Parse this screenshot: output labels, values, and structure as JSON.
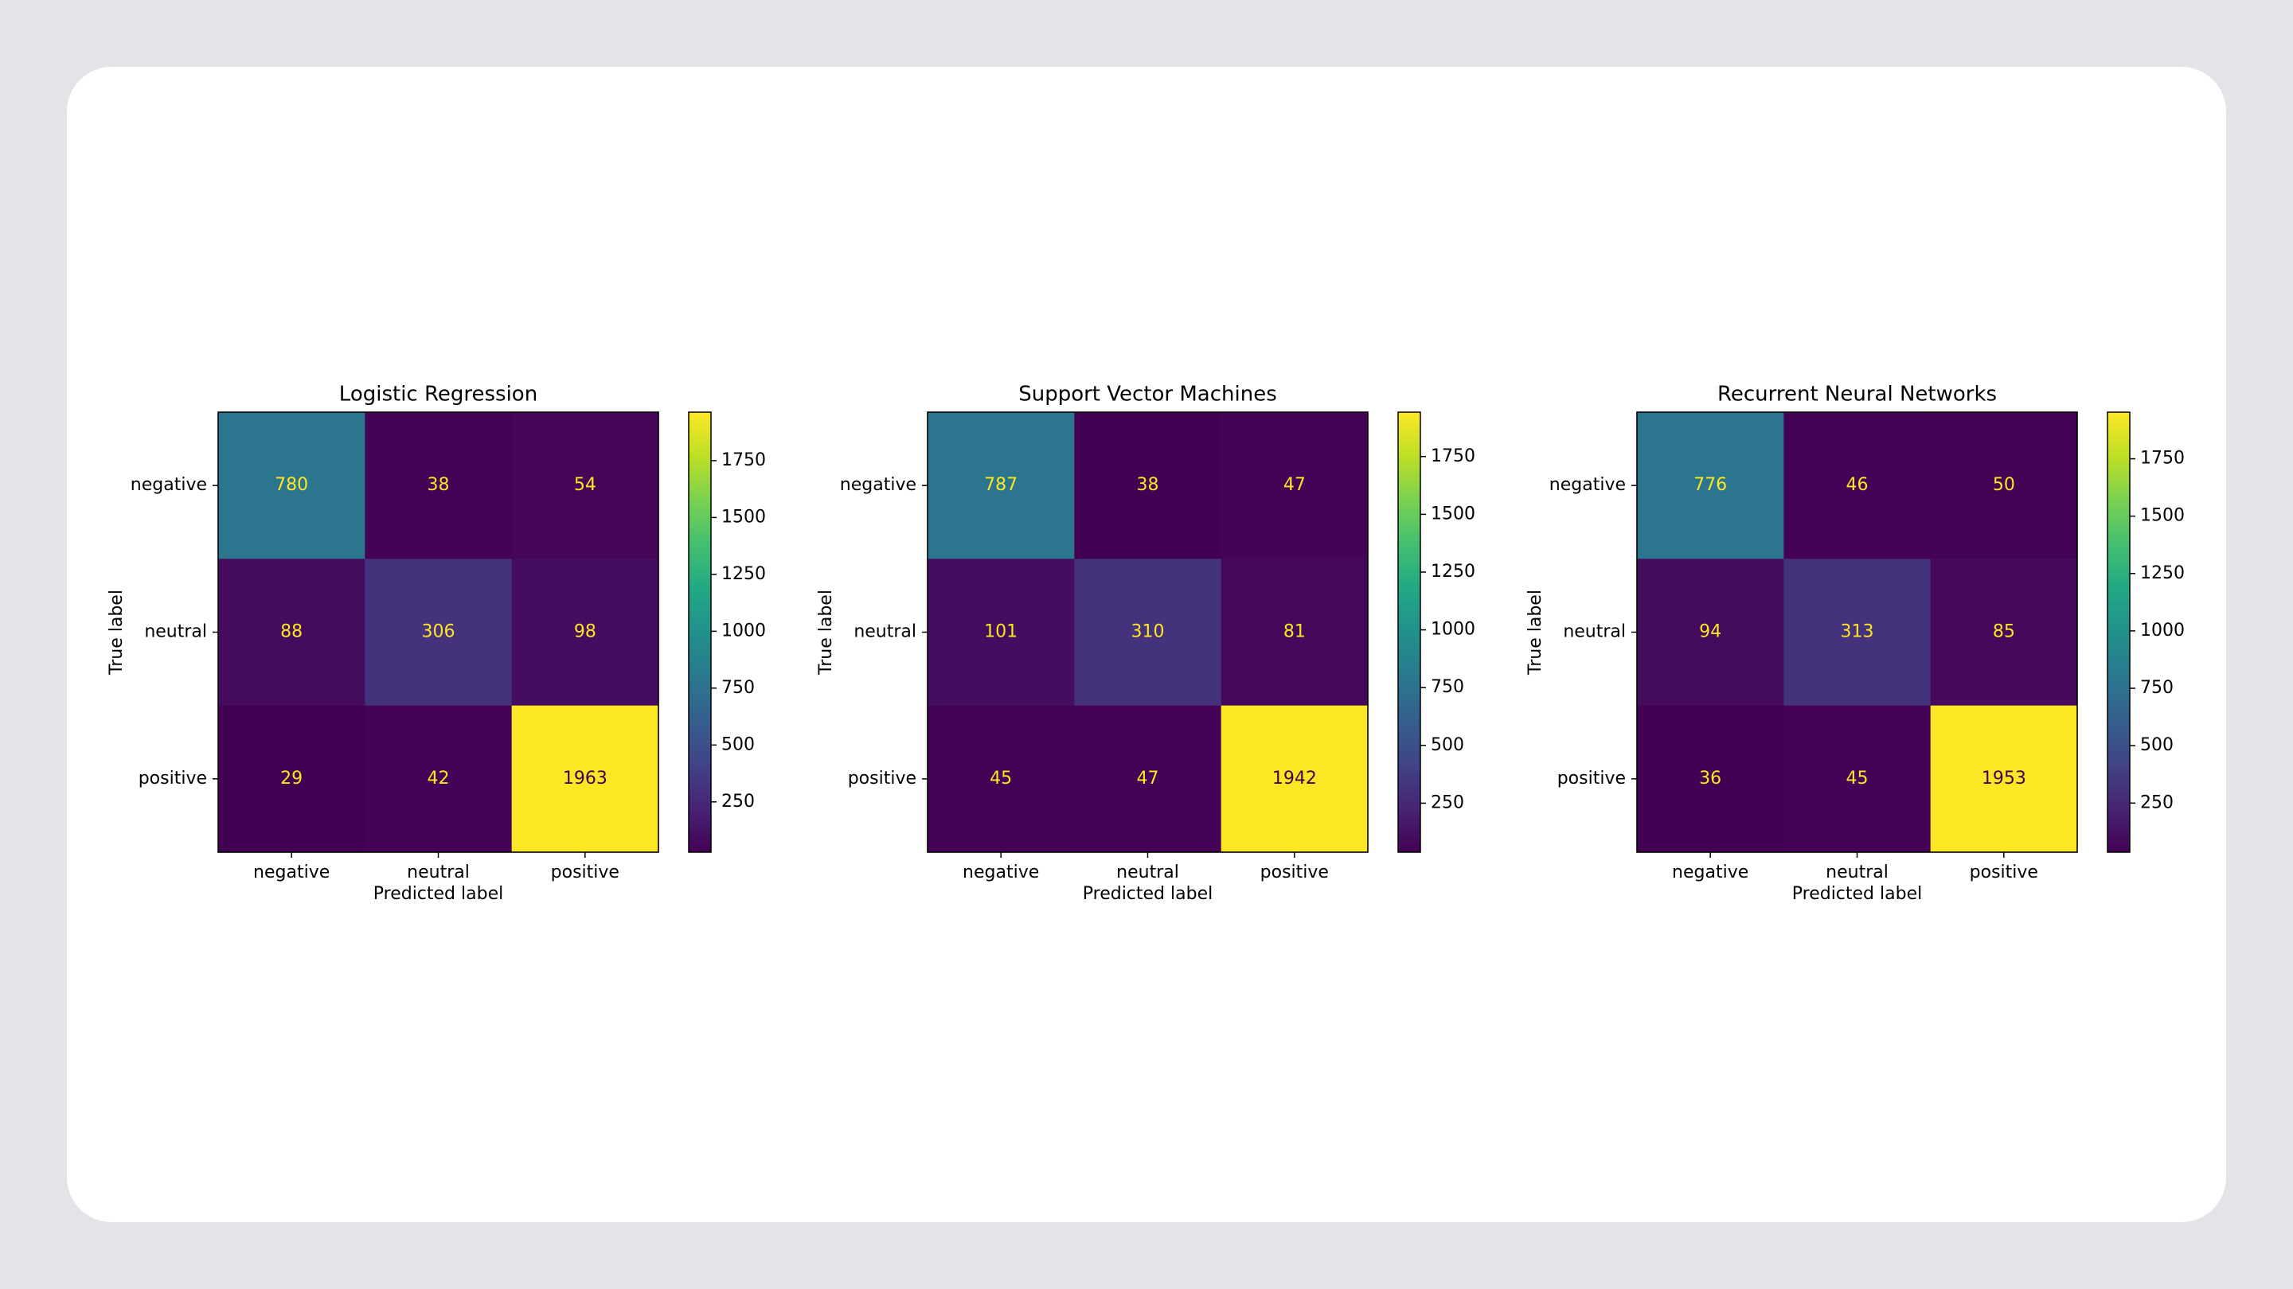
{
  "chart_data": [
    {
      "type": "heatmap",
      "title": "Logistic Regression",
      "colormap": "viridis",
      "x_categories": [
        "negative",
        "neutral",
        "positive"
      ],
      "y_categories": [
        "negative",
        "neutral",
        "positive"
      ],
      "values": [
        [
          780,
          38,
          54
        ],
        [
          88,
          306,
          98
        ],
        [
          29,
          42,
          1963
        ]
      ],
      "xlabel": "Predicted label",
      "ylabel": "True label",
      "clim": [
        29,
        1963
      ],
      "cticks": [
        250,
        500,
        750,
        1000,
        1250,
        1500,
        1750
      ]
    },
    {
      "type": "heatmap",
      "title": "Support Vector Machines",
      "colormap": "viridis",
      "x_categories": [
        "negative",
        "neutral",
        "positive"
      ],
      "y_categories": [
        "negative",
        "neutral",
        "positive"
      ],
      "values": [
        [
          787,
          38,
          47
        ],
        [
          101,
          310,
          81
        ],
        [
          45,
          47,
          1942
        ]
      ],
      "xlabel": "Predicted label",
      "ylabel": "True label",
      "clim": [
        38,
        1942
      ],
      "cticks": [
        250,
        500,
        750,
        1000,
        1250,
        1500,
        1750
      ]
    },
    {
      "type": "heatmap",
      "title": "Recurrent Neural Networks",
      "colormap": "viridis",
      "x_categories": [
        "negative",
        "neutral",
        "positive"
      ],
      "y_categories": [
        "negative",
        "neutral",
        "positive"
      ],
      "values": [
        [
          776,
          46,
          50
        ],
        [
          94,
          313,
          85
        ],
        [
          36,
          45,
          1953
        ]
      ],
      "xlabel": "Predicted label",
      "ylabel": "True label",
      "clim": [
        36,
        1953
      ],
      "cticks": [
        250,
        500,
        750,
        1000,
        1250,
        1500,
        1750
      ]
    }
  ]
}
